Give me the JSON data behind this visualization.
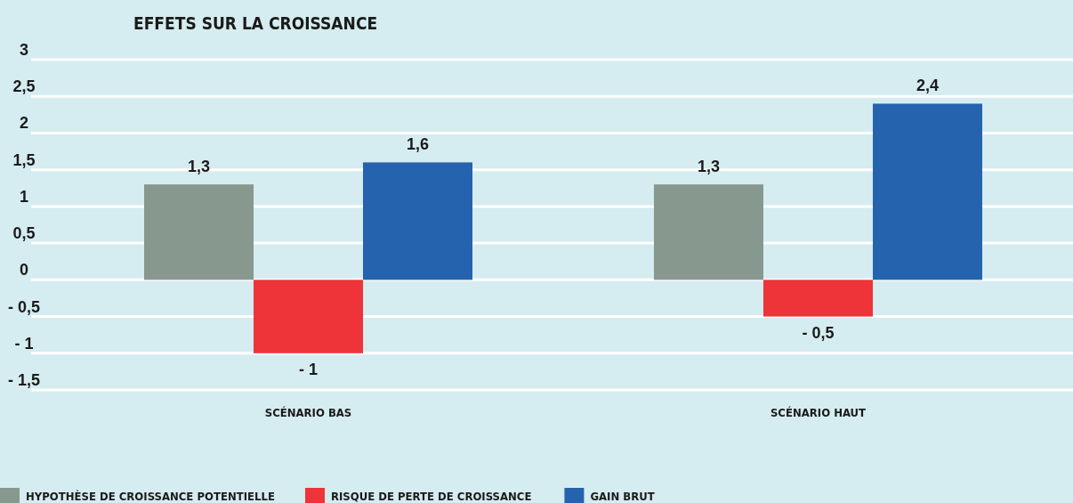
{
  "chart_data": {
    "type": "bar",
    "title": "EFFETS SUR LA CROISSANCE",
    "categories": [
      "SCÉNARIO BAS",
      "SCÉNARIO HAUT"
    ],
    "series": [
      {
        "name": "HYPOTHÈSE DE CROISSANCE POTENTIELLE",
        "color": "#87988f",
        "values": [
          1.3,
          1.3
        ],
        "value_labels": [
          "1,3",
          "1,3"
        ]
      },
      {
        "name": "RISQUE DE PERTE DE CROISSANCE",
        "color": "#ee3439",
        "values": [
          -1,
          -0.5
        ],
        "value_labels": [
          "- 1",
          "- 0,5"
        ]
      },
      {
        "name": "GAIN BRUT",
        "color": "#2563ae",
        "values": [
          1.6,
          2.4
        ],
        "value_labels": [
          "1,6",
          "2,4"
        ]
      }
    ],
    "ylim": [
      -1.5,
      3
    ],
    "yticks": [
      {
        "value": -1.5,
        "label": "- 1,5"
      },
      {
        "value": -1,
        "label": "- 1"
      },
      {
        "value": -0.5,
        "label": "- 0,5"
      },
      {
        "value": 0,
        "label": "0"
      },
      {
        "value": 0.5,
        "label": "0,5"
      },
      {
        "value": 1,
        "label": "1"
      },
      {
        "value": 1.5,
        "label": "1,5"
      },
      {
        "value": 2,
        "label": "2"
      },
      {
        "value": 2.5,
        "label": "2,5"
      },
      {
        "value": 3,
        "label": "3"
      }
    ],
    "grid": "y",
    "legend": "bottom left"
  }
}
